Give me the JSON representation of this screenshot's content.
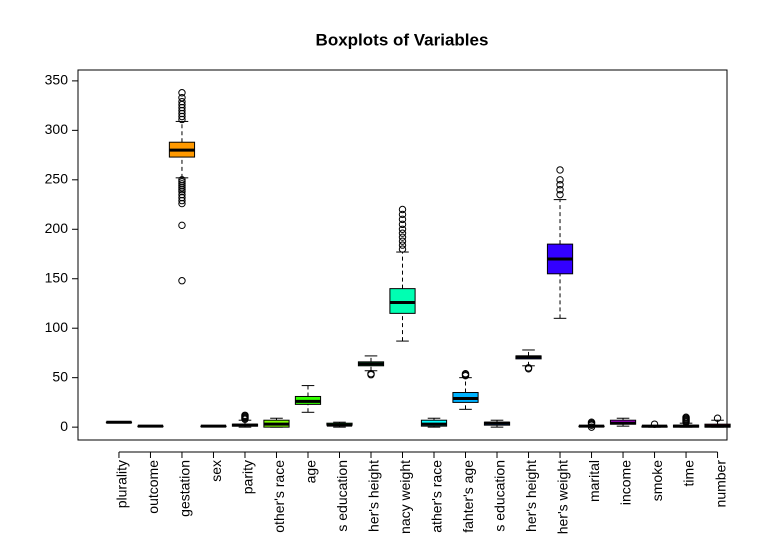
{
  "chart_data": {
    "type": "boxplot",
    "title": "Boxplots of Variables",
    "categories": [
      "plurality",
      "outcome",
      "gestation",
      "sex",
      "parity",
      "other's race",
      "age",
      "s education",
      "her's height",
      "nacy weight",
      "ather's race",
      "fahter's age",
      "s education",
      "her's height",
      "her's weight",
      "marital",
      "income",
      "smoke",
      "time",
      "number"
    ],
    "colors": [
      "#FF0000",
      "#FF4D00",
      "#FF9900",
      "#FFE500",
      "#CCFF00",
      "#80FF00",
      "#33FF00",
      "#00FF19",
      "#00FF66",
      "#00FFB2",
      "#00FFFF",
      "#00B3FF",
      "#0066FF",
      "#001AFF",
      "#3300FF",
      "#7F00FF",
      "#CC00FF",
      "#FF00E6",
      "#FF0099",
      "#FF004D"
    ],
    "boxes": [
      {
        "min": 5,
        "q1": 5,
        "median": 5,
        "q3": 5,
        "max": 5,
        "outliers": []
      },
      {
        "min": 1,
        "q1": 1,
        "median": 1,
        "q3": 1,
        "max": 1,
        "outliers": []
      },
      {
        "min": 252,
        "q1": 273,
        "median": 280,
        "q3": 288,
        "max": 309,
        "outliers": [
          148,
          204,
          226,
          229,
          232,
          235,
          238,
          240,
          242,
          244,
          246,
          248,
          250,
          311,
          314,
          317,
          320,
          323,
          326,
          329,
          333,
          338
        ]
      },
      {
        "min": 1,
        "q1": 1,
        "median": 1,
        "q3": 1,
        "max": 1,
        "outliers": []
      },
      {
        "min": 0,
        "q1": 1,
        "median": 2,
        "q3": 3,
        "max": 7,
        "outliers": [
          8,
          9,
          10,
          11,
          12
        ]
      },
      {
        "min": 0,
        "q1": 0,
        "median": 3,
        "q3": 7,
        "max": 9,
        "outliers": []
      },
      {
        "min": 15,
        "q1": 23,
        "median": 26,
        "q3": 31,
        "max": 42,
        "outliers": []
      },
      {
        "min": 0,
        "q1": 2,
        "median": 2,
        "q3": 4,
        "max": 5,
        "outliers": []
      },
      {
        "min": 57,
        "q1": 62,
        "median": 64,
        "q3": 66,
        "max": 72,
        "outliers": [
          53,
          54
        ]
      },
      {
        "min": 87,
        "q1": 115,
        "median": 126,
        "q3": 140,
        "max": 177,
        "outliers": [
          180,
          184,
          188,
          192,
          196,
          200,
          205,
          210,
          215,
          220
        ]
      },
      {
        "min": 0,
        "q1": 1,
        "median": 3,
        "q3": 7,
        "max": 9,
        "outliers": []
      },
      {
        "min": 18,
        "q1": 25,
        "median": 29,
        "q3": 35,
        "max": 50,
        "outliers": [
          52,
          53,
          54
        ]
      },
      {
        "min": 0,
        "q1": 2,
        "median": 4,
        "q3": 5,
        "max": 7,
        "outliers": []
      },
      {
        "min": 62,
        "q1": 69,
        "median": 71,
        "q3": 72,
        "max": 78,
        "outliers": [
          59,
          60
        ]
      },
      {
        "min": 110,
        "q1": 155,
        "median": 170,
        "q3": 185,
        "max": 230,
        "outliers": [
          235,
          240,
          245,
          250,
          260
        ]
      },
      {
        "min": 1,
        "q1": 1,
        "median": 1,
        "q3": 1,
        "max": 1,
        "outliers": [
          0,
          2,
          3,
          4,
          5
        ]
      },
      {
        "min": 1,
        "q1": 3,
        "median": 4,
        "q3": 7,
        "max": 9,
        "outliers": []
      },
      {
        "min": 0,
        "q1": 0,
        "median": 1,
        "q3": 1,
        "max": 1,
        "outliers": [
          3
        ]
      },
      {
        "min": 0,
        "q1": 0,
        "median": 1,
        "q3": 2,
        "max": 4,
        "outliers": [
          5,
          6,
          7,
          8,
          9,
          10
        ]
      },
      {
        "min": 0,
        "q1": 0,
        "median": 1,
        "q3": 3,
        "max": 7,
        "outliers": [
          9
        ]
      }
    ],
    "ylim": [
      -13,
      361
    ],
    "yticks": [
      0,
      50,
      100,
      150,
      200,
      250,
      300,
      350
    ]
  }
}
